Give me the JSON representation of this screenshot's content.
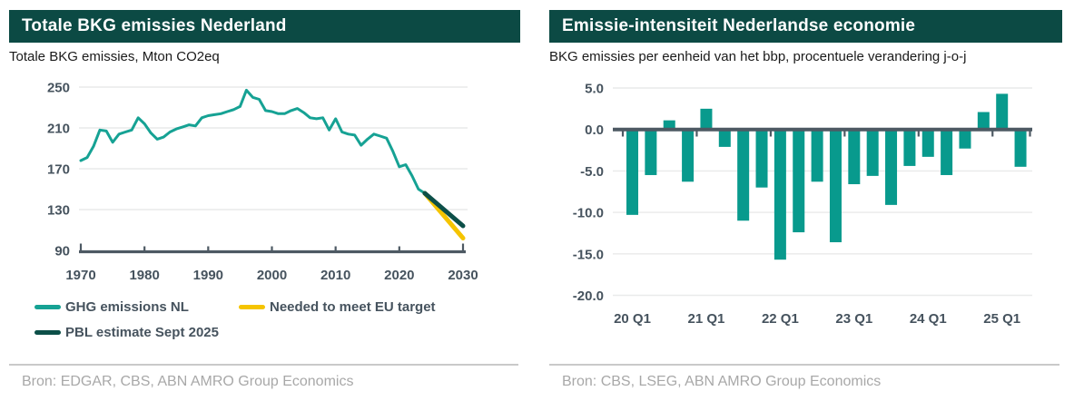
{
  "left_panel": {
    "title": "Totale BKG emissies Nederland",
    "subtitle": "Totale BKG emissies, Mton CO2eq",
    "source": "Bron: EDGAR, CBS, ABN AMRO Group Economics",
    "legend": [
      {
        "label": "GHG emissions NL",
        "color_key": "ghg_line"
      },
      {
        "label": "Needed to meet EU target",
        "color_key": "eu_target_line"
      },
      {
        "label": "PBL estimate Sept 2025",
        "color_key": "pbl_line"
      }
    ]
  },
  "right_panel": {
    "title": "Emissie-intensiteit Nederlandse economie",
    "subtitle": "BKG emissies per eenheid van het bbp, procentuele verandering j-o-j",
    "source": "Bron: CBS, LSEG, ABN AMRO Group Economics"
  },
  "colors": {
    "header_bg": "#0c4a44",
    "header_text": "#ffffff",
    "ghg_line": "#16a294",
    "pbl_line": "#0c4f48",
    "eu_target_line": "#f5c400",
    "bar_fill": "#089a8d",
    "axis": "#4d5963",
    "tick_label": "#46535e",
    "gridline": "#e9eaea",
    "divider": "#c9c9c9",
    "source_text": "#a8a8a8",
    "subtitle_text": "#1a1a1a"
  },
  "chart_data": [
    {
      "type": "line",
      "title": "Totale BKG emissies Nederland",
      "xlabel": "",
      "ylabel": "Mton CO2eq",
      "ylim": [
        90,
        250
      ],
      "yticks": [
        250,
        210,
        170,
        130,
        90
      ],
      "xticks": [
        1970,
        1980,
        1990,
        2000,
        2010,
        2020,
        2030
      ],
      "grid": "horizontal",
      "legend_position": "bottom",
      "series": [
        {
          "name": "GHG emissions NL",
          "key": "ghg",
          "color_key": "ghg_line",
          "x_start": 1970,
          "x_step": 1,
          "values": [
            178,
            181,
            192,
            208,
            207,
            196,
            204,
            206,
            208,
            220,
            214,
            205,
            199,
            201,
            206,
            209,
            211,
            213,
            212,
            220,
            222,
            223,
            224,
            226,
            228,
            231,
            247,
            240,
            238,
            227,
            226,
            224,
            224,
            227,
            229,
            225,
            220,
            219,
            220,
            208,
            219,
            206,
            204,
            203,
            193,
            199,
            204,
            202,
            200,
            187,
            172,
            174,
            163,
            150,
            146
          ]
        },
        {
          "name": "Needed to meet EU target",
          "key": "eu_target",
          "color_key": "eu_target_line",
          "x": [
            2024,
            2030
          ],
          "values": [
            146,
            102
          ]
        },
        {
          "name": "PBL estimate Sept 2025",
          "key": "pbl",
          "color_key": "pbl_line",
          "x": [
            2024,
            2030
          ],
          "values": [
            146,
            114
          ]
        }
      ]
    },
    {
      "type": "bar",
      "title": "Emissie-intensiteit Nederlandse economie",
      "xlabel": "",
      "ylabel": "procentuele verandering j-o-j",
      "categories": [
        "20 Q1",
        "20 Q2",
        "20 Q3",
        "20 Q4",
        "21 Q1",
        "21 Q2",
        "21 Q3",
        "21 Q4",
        "22 Q1",
        "22 Q2",
        "22 Q3",
        "22 Q4",
        "23 Q1",
        "23 Q2",
        "23 Q3",
        "23 Q4",
        "24 Q1",
        "24 Q2",
        "24 Q3",
        "24 Q4",
        "25 Q1",
        "25 Q2"
      ],
      "values": [
        -10.3,
        -5.5,
        1.1,
        -6.3,
        2.5,
        -2.1,
        -11.0,
        -7.0,
        -15.7,
        -12.4,
        -6.3,
        -13.6,
        -6.6,
        -5.6,
        -9.1,
        -4.4,
        -3.3,
        -5.5,
        -2.3,
        2.1,
        4.3,
        -4.5
      ],
      "xticklabels": [
        "20 Q1",
        "21 Q1",
        "22 Q1",
        "23 Q1",
        "24 Q1",
        "25 Q1"
      ],
      "ylim": [
        -20,
        5
      ],
      "yticks": [
        "5.0",
        "0.0",
        "-5.0",
        "-10.0",
        "-15.0",
        "-20.0"
      ],
      "grid": "horizontal"
    }
  ]
}
